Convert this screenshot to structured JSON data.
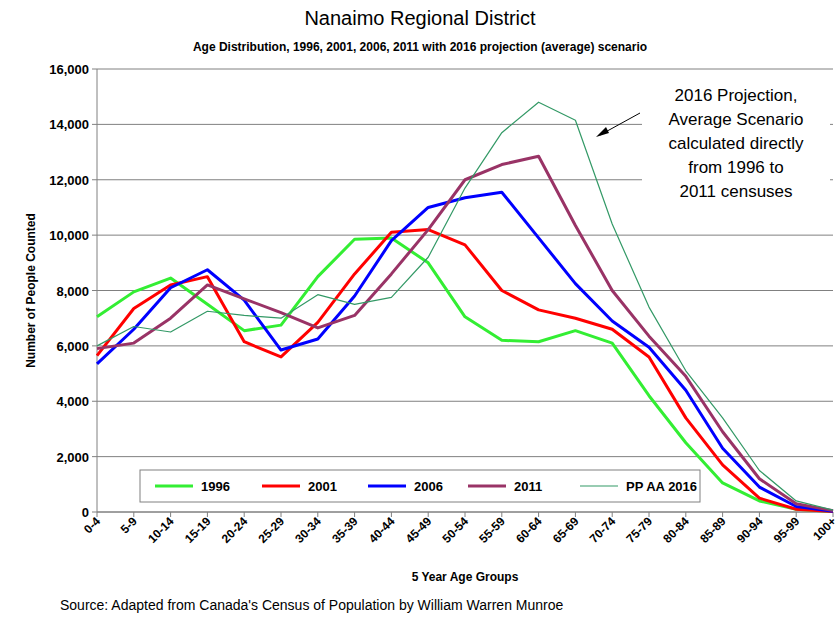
{
  "chart_data": {
    "type": "line",
    "title": "Nanaimo Regional District",
    "subtitle": "Age Distribution, 1996, 2001, 2006, 2011 with 2016 projection (average) scenario",
    "x_label": "5 Year Age Groups",
    "y_label": "Number of People Counted",
    "annotation": [
      "2016 Projection,",
      "Average Scenario",
      "calculated directly",
      "from 1996 to",
      "2011 censuses"
    ],
    "source": "Source: Adapted from Canada's Census of Population by William Warren Munroe",
    "categories": [
      "0-4",
      "5-9",
      "10-14",
      "15-19",
      "20-24",
      "25-29",
      "30-34",
      "35-39",
      "40-44",
      "45-49",
      "50-54",
      "55-59",
      "60-64",
      "65-69",
      "70-74",
      "75-79",
      "80-84",
      "85-89",
      "90-94",
      "95-99",
      "100+"
    ],
    "series": [
      {
        "name": "1996",
        "color": "#33ee33",
        "values": [
          7050,
          7950,
          8450,
          7500,
          6550,
          6750,
          8500,
          9850,
          9900,
          9000,
          7050,
          6200,
          6150,
          6550,
          6100,
          4200,
          2500,
          1050,
          400,
          100,
          20
        ]
      },
      {
        "name": "2001",
        "color": "#ff0000",
        "values": [
          5650,
          7350,
          8200,
          8500,
          6150,
          5600,
          6850,
          8600,
          10100,
          10200,
          9650,
          8000,
          7300,
          7000,
          6600,
          5600,
          3400,
          1700,
          500,
          100,
          20
        ]
      },
      {
        "name": "2006",
        "color": "#0000ff",
        "values": [
          5350,
          6600,
          8100,
          8750,
          7650,
          5850,
          6250,
          7800,
          9800,
          11000,
          11350,
          11550,
          9900,
          8250,
          6900,
          5950,
          4400,
          2300,
          900,
          200,
          30
        ]
      },
      {
        "name": "2011",
        "color": "#993366",
        "values": [
          5900,
          6100,
          7000,
          8200,
          7700,
          7200,
          6650,
          7100,
          8600,
          10200,
          12000,
          12550,
          12850,
          10350,
          8000,
          6350,
          4900,
          2900,
          1200,
          300,
          50
        ]
      },
      {
        "name": "PP AA 2016",
        "color": "#339966",
        "values": [
          6000,
          6700,
          6500,
          7250,
          7100,
          7000,
          7850,
          7500,
          7750,
          9200,
          11700,
          13700,
          14800,
          14150,
          10400,
          7400,
          5100,
          3400,
          1500,
          400,
          70
        ]
      }
    ],
    "ylim": [
      0,
      16000
    ],
    "yticks": [
      0,
      {
        "value": 2000,
        "label": "2,000"
      },
      {
        "value": 4000,
        "label": "4,000"
      },
      {
        "value": 6000,
        "label": "6,000"
      },
      {
        "value": 8000,
        "label": "8,000"
      },
      {
        "value": 10000,
        "label": "10,000"
      },
      {
        "value": 12000,
        "label": "12,000"
      },
      {
        "value": 14000,
        "label": "14,000"
      },
      {
        "value": 16000,
        "label": "16,000"
      }
    ],
    "grid": true,
    "legend": "bottom"
  }
}
